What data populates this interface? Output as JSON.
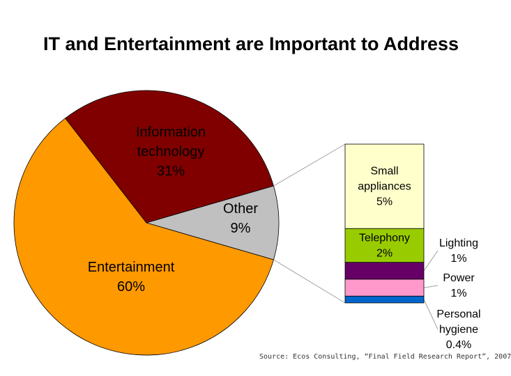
{
  "title": "IT and Entertainment are Important to Address",
  "source": "Source: Ecos Consulting, “Final Field Research Report”, 2007",
  "chart_data": {
    "type": "pie",
    "title": "IT and Entertainment are Important to Address",
    "slices": [
      {
        "name": "Information technology",
        "label_lines": [
          "Information",
          "technology"
        ],
        "value": 31,
        "value_label": "31%",
        "color": "#800000"
      },
      {
        "name": "Other",
        "label_lines": [
          "Other"
        ],
        "value": 9,
        "value_label": "9%",
        "color": "#c0c0c0"
      },
      {
        "name": "Entertainment",
        "label_lines": [
          "Entertainment"
        ],
        "value": 60,
        "value_label": "60%",
        "color": "#ff9900"
      }
    ],
    "breakdown": {
      "of": "Other",
      "type": "stacked-bar",
      "segments": [
        {
          "name": "Small appliances",
          "label_lines": [
            "Small",
            "appliances"
          ],
          "value": 5,
          "value_label": "5%",
          "color": "#ffffcc"
        },
        {
          "name": "Telephony",
          "label_lines": [
            "Telephony"
          ],
          "value": 2,
          "value_label": "2%",
          "color": "#99cc00"
        },
        {
          "name": "Lighting",
          "label_lines": [
            "Lighting"
          ],
          "value": 1,
          "value_label": "1%",
          "color": "#660066"
        },
        {
          "name": "Power",
          "label_lines": [
            "Power"
          ],
          "value": 1,
          "value_label": "1%",
          "color": "#ff99cc"
        },
        {
          "name": "Personal hygiene",
          "label_lines": [
            "Personal",
            "hygiene"
          ],
          "value": 0.4,
          "value_label": "0.4%",
          "color": "#0066cc"
        }
      ]
    }
  }
}
